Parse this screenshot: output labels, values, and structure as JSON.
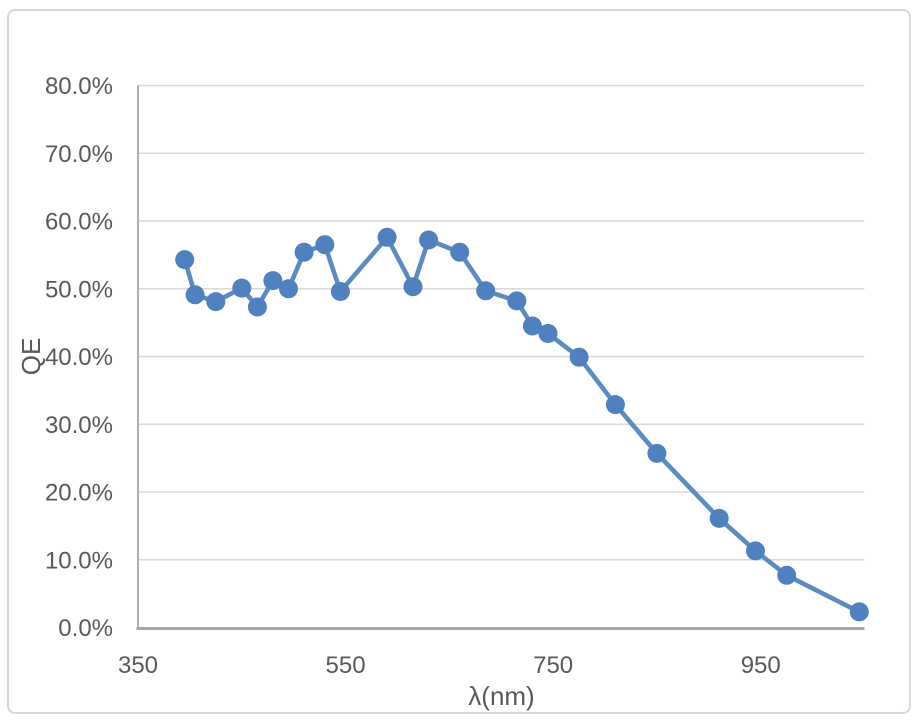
{
  "chart_data": {
    "type": "line",
    "title": "",
    "xlabel": "λ(nm)",
    "ylabel": "QE",
    "series": [
      {
        "name": "QE",
        "x": [
          395,
          405,
          425,
          450,
          465,
          480,
          495,
          510,
          530,
          545,
          590,
          615,
          630,
          660,
          685,
          715,
          730,
          745,
          775,
          810,
          850,
          910,
          945,
          975,
          1045
        ],
        "y_percent": [
          54.3,
          49.1,
          48.1,
          50.1,
          47.3,
          51.2,
          50.0,
          55.4,
          56.5,
          49.6,
          57.6,
          50.3,
          57.2,
          55.4,
          49.7,
          48.2,
          44.5,
          43.4,
          39.9,
          32.9,
          25.7,
          16.1,
          11.3,
          7.7,
          2.3
        ]
      }
    ],
    "xlim": [
      350,
      1050
    ],
    "ylim_percent": [
      0,
      80
    ],
    "x_ticks": [
      350,
      550,
      750,
      950
    ],
    "x_tick_labels": [
      "350",
      "550",
      "750",
      "950"
    ],
    "y_ticks_percent": [
      0,
      10,
      20,
      30,
      40,
      50,
      60,
      70,
      80
    ],
    "y_tick_labels": [
      "0.0%",
      "10.0%",
      "20.0%",
      "30.0%",
      "40.0%",
      "50.0%",
      "60.0%",
      "70.0%",
      "80.0%"
    ],
    "grid": "horizontal-only",
    "legend_position": "none",
    "marker": "circle",
    "colors": {
      "series": "#4E81BD",
      "gridline": "#D9D9D9",
      "axis_line": "#A6A6A6",
      "tick_text": "#595959",
      "chart_border": "#D7D7D7",
      "background": "#FFFFFF"
    }
  }
}
